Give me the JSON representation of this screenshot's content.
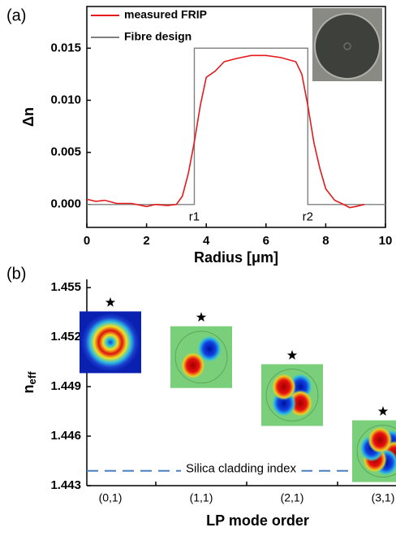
{
  "chart_data": [
    {
      "type": "line",
      "panel_label": "(a)",
      "xlabel": "Radius [μm]",
      "ylabel": "Δn",
      "xlim": [
        0,
        10
      ],
      "xticks": [
        0,
        2,
        4,
        6,
        8,
        10
      ],
      "ylim": [
        -0.0022,
        0.019
      ],
      "yticks": [
        {
          "value": 0,
          "label": "0.000"
        },
        0.005,
        {
          "value": 0.01,
          "label": "0.010"
        },
        0.015
      ],
      "legend": "upper left",
      "series": [
        {
          "name": "measured FRIP",
          "color": "#e41a1c",
          "x": [
            0,
            0.3,
            0.6,
            1,
            1.5,
            2,
            2.3,
            2.7,
            3,
            3.2,
            3.4,
            3.6,
            3.8,
            4,
            4.3,
            4.6,
            5,
            5.5,
            6,
            6.5,
            7,
            7.2,
            7.4,
            7.6,
            7.8,
            8,
            8.3,
            8.6,
            8.8,
            9,
            9.3
          ],
          "values": [
            0.0005,
            0.0003,
            0.0004,
            0.0001,
            0.0001,
            -0.0002,
            0,
            -0.0001,
            0,
            0.0008,
            0.003,
            0.006,
            0.0095,
            0.0122,
            0.0128,
            0.0137,
            0.014,
            0.0143,
            0.0143,
            0.0141,
            0.0137,
            0.0125,
            0.0095,
            0.006,
            0.0035,
            0.0015,
            0.0004,
            0,
            -0.0003,
            -0.0002,
            0
          ]
        },
        {
          "name": "Fibre design",
          "color": "#808080",
          "x": [
            0,
            3.6,
            3.6,
            7.4,
            7.4,
            10
          ],
          "values": [
            0,
            0,
            0.015,
            0.015,
            0,
            0
          ]
        }
      ],
      "annotations": [
        {
          "text": "r1",
          "x": 3.6,
          "color": "#3a7ab8"
        },
        {
          "text": "r2",
          "x": 7.4,
          "color": "#3a7ab8"
        }
      ]
    },
    {
      "type": "scatter",
      "panel_label": "(b)",
      "xlabel": "LP mode order",
      "ylabel": "n",
      "ylabel_sub": "eff",
      "categories": [
        "(0,1)",
        "(1,1)",
        "(2,1)",
        "(3,1)"
      ],
      "values": [
        1.4541,
        1.4532,
        1.4509,
        1.4475
      ],
      "color": "#000000",
      "marker": "star",
      "ylim": [
        1.443,
        1.4555
      ],
      "yticks": [
        1.443,
        1.446,
        1.449,
        1.452,
        1.455
      ],
      "reference_lines": [
        {
          "value": 1.4439,
          "label": "Silica cladding index",
          "color": "#4a7fbf"
        }
      ]
    }
  ]
}
